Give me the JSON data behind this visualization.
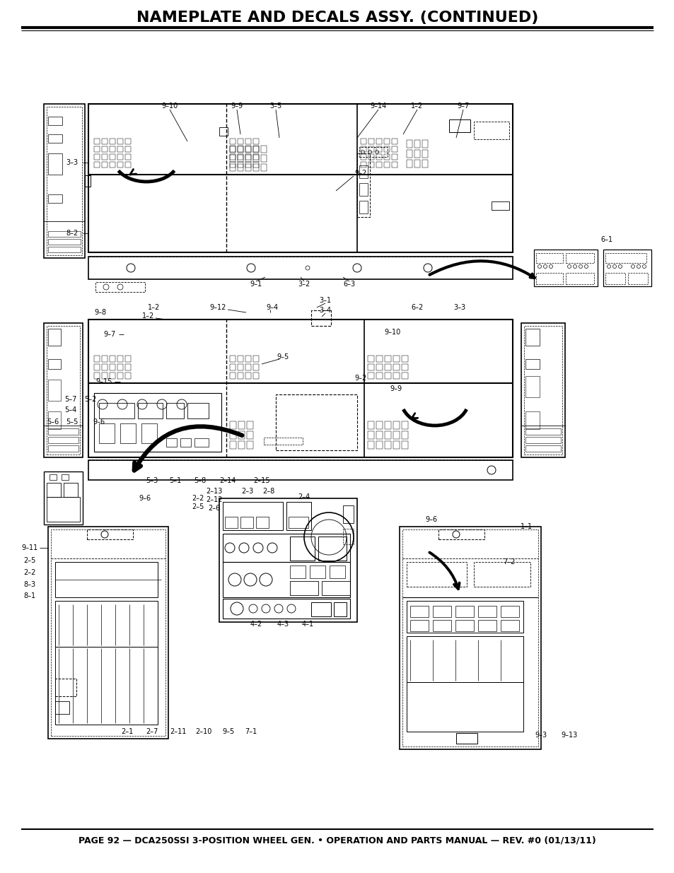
{
  "title": "NAMEPLATE AND DECALS ASSY. (CONTINUED)",
  "footer": "PAGE 92 — DCA250SSI 3-POSITION WHEEL GEN. • OPERATION AND PARTS MANUAL — REV. #0 (01/13/11)",
  "bg_color": "#ffffff",
  "title_fontsize": 16,
  "footer_fontsize": 9
}
